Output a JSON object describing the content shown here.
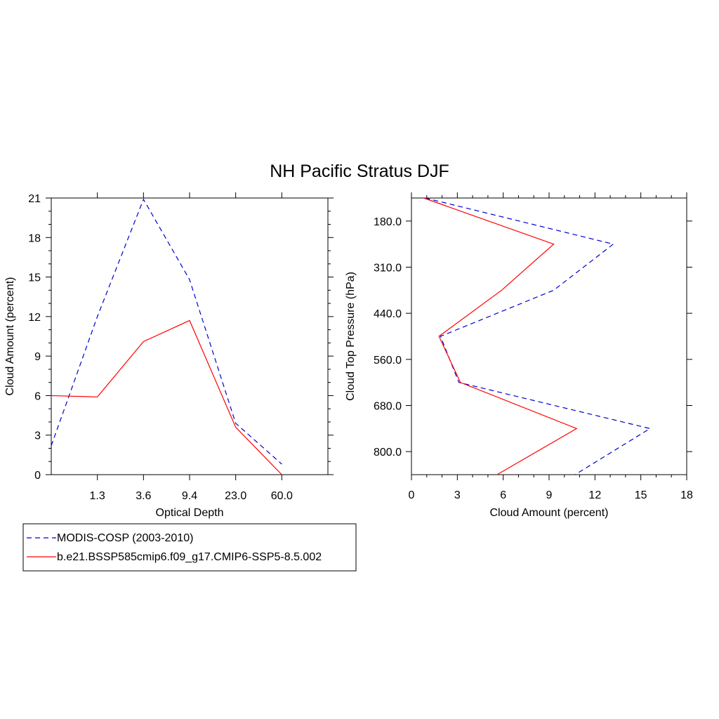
{
  "figure": {
    "title": "NH Pacific Stratus DJF"
  },
  "chart_data": [
    {
      "type": "line",
      "xlabel": "Optical Depth",
      "ylabel": "Cloud Amount (percent)",
      "x_tick_labels": [
        "1.3",
        "3.6",
        "9.4",
        "23.0",
        "60.0"
      ],
      "y_ticks": [
        0,
        3,
        6,
        9,
        12,
        15,
        18,
        21
      ],
      "ylim": [
        0,
        21
      ],
      "x_bins": 6,
      "series": [
        {
          "name": "MODIS-COSP (2003-2010)",
          "color": "#0000cc",
          "dash": "dashed",
          "values": [
            2.2,
            12.0,
            20.9,
            14.8,
            3.9,
            0.8
          ]
        },
        {
          "name": "b.e21.BSSP585cmip6.f09_g17.CMIP6-SSP5-8.5.002",
          "color": "#ff0000",
          "dash": "solid",
          "values": [
            6.0,
            5.9,
            10.1,
            11.7,
            3.6,
            0.0
          ]
        }
      ]
    },
    {
      "type": "line",
      "orientation": "horizontal",
      "xlabel": "Cloud Amount (percent)",
      "ylabel": "Cloud Top Pressure (hPa)",
      "x_ticks": [
        0,
        3,
        6,
        9,
        12,
        15,
        18
      ],
      "xlim": [
        0,
        18
      ],
      "y_tick_labels": [
        "180.0",
        "310.0",
        "440.0",
        "560.0",
        "680.0",
        "800.0"
      ],
      "y_levels": 7,
      "series": [
        {
          "name": "MODIS-COSP (2003-2010)",
          "color": "#0000cc",
          "dash": "dashed",
          "values": [
            0.9,
            13.2,
            9.3,
            1.9,
            3.1,
            15.6,
            10.7
          ]
        },
        {
          "name": "b.e21.BSSP585cmip6.f09_g17.CMIP6-SSP5-8.5.002",
          "color": "#ff0000",
          "dash": "solid",
          "values": [
            0.8,
            9.3,
            5.9,
            1.8,
            3.2,
            10.8,
            5.6
          ]
        }
      ]
    }
  ],
  "legend": {
    "entries": [
      {
        "label": "MODIS-COSP (2003-2010)",
        "color": "#0000cc",
        "dash": "dashed"
      },
      {
        "label": "b.e21.BSSP585cmip6.f09_g17.CMIP6-SSP5-8.5.002",
        "color": "#ff0000",
        "dash": "solid"
      }
    ]
  }
}
